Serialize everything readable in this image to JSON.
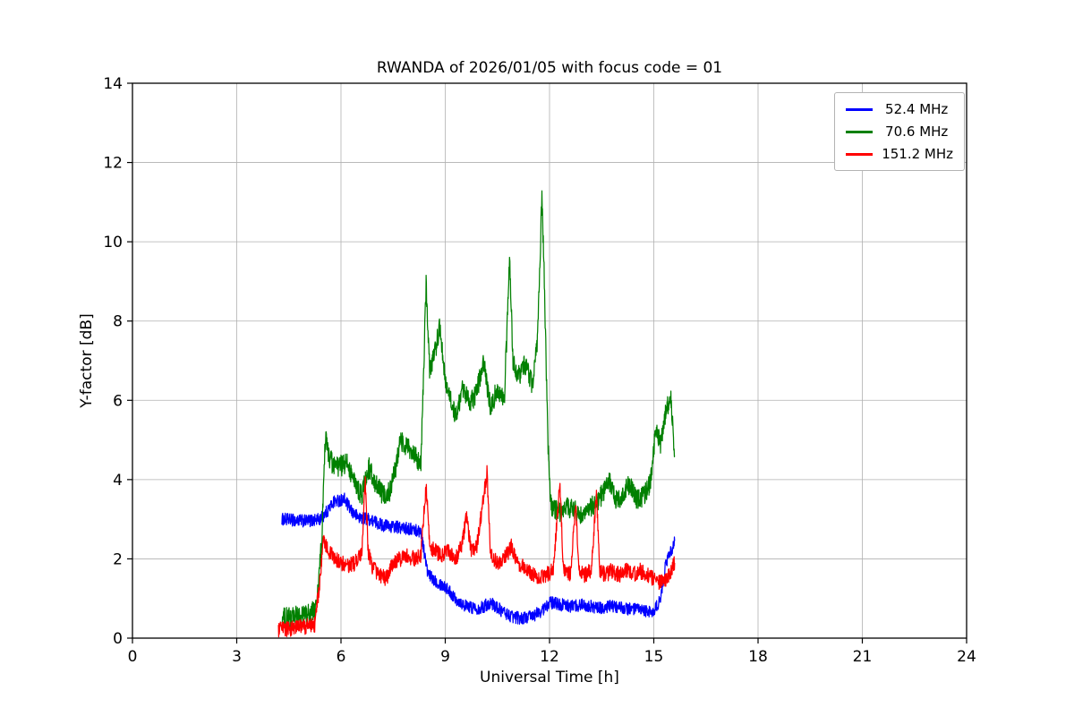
{
  "chart_data": {
    "type": "line",
    "title": "RWANDA of 2026/01/05 with focus code = 01",
    "xlabel": "Universal Time [h]",
    "ylabel": "Y-factor [dB]",
    "xlim": [
      0,
      24
    ],
    "ylim": [
      0,
      14
    ],
    "xticks": [
      0,
      3,
      6,
      9,
      12,
      15,
      18,
      21,
      24
    ],
    "yticks": [
      0,
      2,
      4,
      6,
      8,
      10,
      12,
      14
    ],
    "grid": true,
    "grid_color": "#b0b0b0",
    "axis_color": "#000000",
    "legend_position": "upper right",
    "series": [
      {
        "name": "52.4 MHz",
        "color": "#0000ff",
        "noise": 0.16,
        "points": [
          [
            4.3,
            3.0
          ],
          [
            5.0,
            2.95
          ],
          [
            5.4,
            3.0
          ],
          [
            5.6,
            3.2
          ],
          [
            5.8,
            3.45
          ],
          [
            6.1,
            3.5
          ],
          [
            6.3,
            3.2
          ],
          [
            6.5,
            3.05
          ],
          [
            6.8,
            3.0
          ],
          [
            7.2,
            2.85
          ],
          [
            7.6,
            2.8
          ],
          [
            8.0,
            2.75
          ],
          [
            8.3,
            2.7
          ],
          [
            8.5,
            1.6
          ],
          [
            8.8,
            1.4
          ],
          [
            9.0,
            1.3
          ],
          [
            9.3,
            1.0
          ],
          [
            9.6,
            0.8
          ],
          [
            10.0,
            0.75
          ],
          [
            10.3,
            0.9
          ],
          [
            10.6,
            0.7
          ],
          [
            10.9,
            0.55
          ],
          [
            11.2,
            0.5
          ],
          [
            11.5,
            0.55
          ],
          [
            11.8,
            0.7
          ],
          [
            12.0,
            0.9
          ],
          [
            12.3,
            0.85
          ],
          [
            12.6,
            0.8
          ],
          [
            13.0,
            0.85
          ],
          [
            13.4,
            0.75
          ],
          [
            13.8,
            0.8
          ],
          [
            14.2,
            0.75
          ],
          [
            14.6,
            0.7
          ],
          [
            15.0,
            0.65
          ],
          [
            15.2,
            1.0
          ],
          [
            15.35,
            1.9
          ],
          [
            15.5,
            2.2
          ],
          [
            15.6,
            2.45
          ]
        ]
      },
      {
        "name": "70.6 MHz",
        "color": "#008000",
        "noise": 0.27,
        "points": [
          [
            4.3,
            0.5
          ],
          [
            4.8,
            0.55
          ],
          [
            5.1,
            0.6
          ],
          [
            5.3,
            0.8
          ],
          [
            5.45,
            2.5
          ],
          [
            5.55,
            5.1
          ],
          [
            5.65,
            4.6
          ],
          [
            5.8,
            4.3
          ],
          [
            6.0,
            4.35
          ],
          [
            6.2,
            4.4
          ],
          [
            6.4,
            3.9
          ],
          [
            6.6,
            3.6
          ],
          [
            6.8,
            4.3
          ],
          [
            7.0,
            3.9
          ],
          [
            7.2,
            3.6
          ],
          [
            7.4,
            3.7
          ],
          [
            7.6,
            4.4
          ],
          [
            7.7,
            5.0
          ],
          [
            7.9,
            4.8
          ],
          [
            8.1,
            4.6
          ],
          [
            8.3,
            4.4
          ],
          [
            8.45,
            8.9
          ],
          [
            8.55,
            6.8
          ],
          [
            8.7,
            7.2
          ],
          [
            8.85,
            7.9
          ],
          [
            9.0,
            6.5
          ],
          [
            9.15,
            6.0
          ],
          [
            9.3,
            5.6
          ],
          [
            9.5,
            6.3
          ],
          [
            9.7,
            5.9
          ],
          [
            9.9,
            6.2
          ],
          [
            10.1,
            7.0
          ],
          [
            10.3,
            5.8
          ],
          [
            10.5,
            6.3
          ],
          [
            10.7,
            6.0
          ],
          [
            10.85,
            9.5
          ],
          [
            10.95,
            7.0
          ],
          [
            11.1,
            6.6
          ],
          [
            11.3,
            6.9
          ],
          [
            11.5,
            6.4
          ],
          [
            11.65,
            7.5
          ],
          [
            11.78,
            11.1
          ],
          [
            11.85,
            9.0
          ],
          [
            11.95,
            5.0
          ],
          [
            12.05,
            3.3
          ],
          [
            12.3,
            3.2
          ],
          [
            12.6,
            3.3
          ],
          [
            12.9,
            3.1
          ],
          [
            13.2,
            3.3
          ],
          [
            13.5,
            3.6
          ],
          [
            13.7,
            4.0
          ],
          [
            13.9,
            3.5
          ],
          [
            14.1,
            3.6
          ],
          [
            14.3,
            3.9
          ],
          [
            14.5,
            3.5
          ],
          [
            14.7,
            3.6
          ],
          [
            14.9,
            3.9
          ],
          [
            15.05,
            5.2
          ],
          [
            15.2,
            4.9
          ],
          [
            15.35,
            5.8
          ],
          [
            15.5,
            6.0
          ],
          [
            15.6,
            4.6
          ]
        ]
      },
      {
        "name": "151.2 MHz",
        "color": "#ff0000",
        "noise": 0.2,
        "points": [
          [
            4.2,
            0.2
          ],
          [
            4.6,
            0.25
          ],
          [
            5.0,
            0.3
          ],
          [
            5.25,
            0.35
          ],
          [
            5.4,
            1.5
          ],
          [
            5.5,
            2.5
          ],
          [
            5.65,
            2.2
          ],
          [
            5.8,
            2.0
          ],
          [
            6.0,
            1.9
          ],
          [
            6.2,
            1.8
          ],
          [
            6.4,
            1.9
          ],
          [
            6.6,
            2.1
          ],
          [
            6.7,
            4.0
          ],
          [
            6.78,
            2.2
          ],
          [
            6.9,
            1.8
          ],
          [
            7.1,
            1.6
          ],
          [
            7.3,
            1.5
          ],
          [
            7.5,
            1.9
          ],
          [
            7.7,
            2.0
          ],
          [
            7.9,
            2.1
          ],
          [
            8.1,
            2.0
          ],
          [
            8.3,
            2.1
          ],
          [
            8.45,
            3.9
          ],
          [
            8.55,
            2.3
          ],
          [
            8.7,
            2.2
          ],
          [
            8.9,
            2.1
          ],
          [
            9.1,
            2.2
          ],
          [
            9.3,
            2.0
          ],
          [
            9.5,
            2.4
          ],
          [
            9.6,
            3.1
          ],
          [
            9.75,
            2.2
          ],
          [
            9.9,
            2.3
          ],
          [
            10.05,
            3.2
          ],
          [
            10.2,
            4.2
          ],
          [
            10.3,
            2.1
          ],
          [
            10.5,
            1.9
          ],
          [
            10.7,
            2.0
          ],
          [
            10.9,
            2.3
          ],
          [
            11.1,
            1.9
          ],
          [
            11.3,
            1.8
          ],
          [
            11.5,
            1.6
          ],
          [
            11.7,
            1.5
          ],
          [
            11.9,
            1.6
          ],
          [
            12.1,
            1.7
          ],
          [
            12.3,
            3.9
          ],
          [
            12.4,
            1.7
          ],
          [
            12.6,
            1.6
          ],
          [
            12.75,
            3.4
          ],
          [
            12.85,
            1.7
          ],
          [
            13.0,
            1.6
          ],
          [
            13.2,
            1.7
          ],
          [
            13.35,
            3.6
          ],
          [
            13.45,
            1.7
          ],
          [
            13.6,
            1.6
          ],
          [
            13.8,
            1.7
          ],
          [
            14.0,
            1.6
          ],
          [
            14.2,
            1.7
          ],
          [
            14.4,
            1.6
          ],
          [
            14.6,
            1.7
          ],
          [
            14.8,
            1.6
          ],
          [
            15.0,
            1.5
          ],
          [
            15.2,
            1.4
          ],
          [
            15.4,
            1.5
          ],
          [
            15.6,
            1.9
          ]
        ]
      }
    ]
  }
}
